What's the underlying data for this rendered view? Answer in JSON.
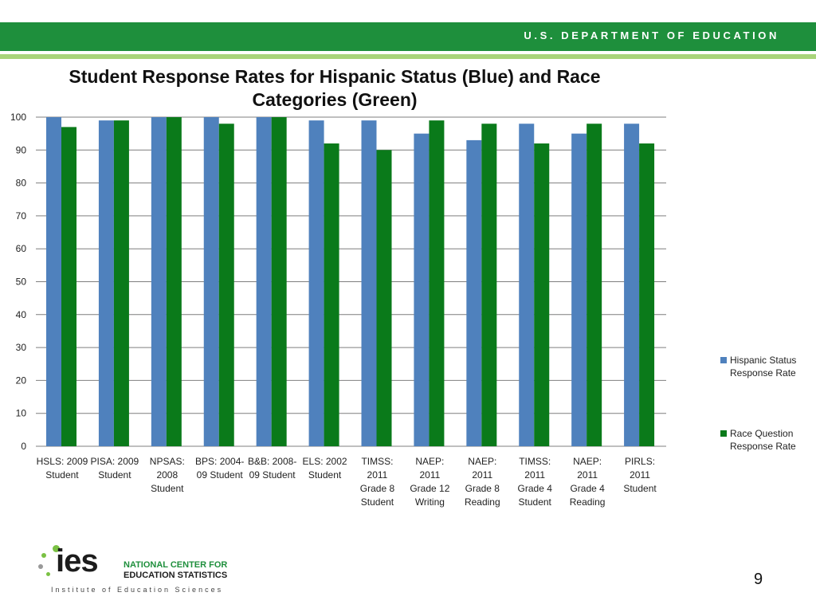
{
  "header": {
    "department": "U.S. DEPARTMENT OF EDUCATION"
  },
  "title": "Student Response Rates for Hispanic Status (Blue) and Race Categories (Green)",
  "chart_data": {
    "type": "bar",
    "title": "Student Response Rates for Hispanic Status (Blue) and Race Categories (Green)",
    "xlabel": "",
    "ylabel": "",
    "ylim": [
      0,
      100
    ],
    "yticks": [
      0,
      10,
      20,
      30,
      40,
      50,
      60,
      70,
      80,
      90,
      100
    ],
    "grid": true,
    "legend_position": "right",
    "categories": [
      [
        "HSLS: 2009",
        "Student"
      ],
      [
        "PISA: 2009",
        "Student"
      ],
      [
        "NPSAS:",
        "2008",
        "Student"
      ],
      [
        "BPS: 2004-",
        "09 Student"
      ],
      [
        "B&B: 2008-",
        "09 Student"
      ],
      [
        "ELS: 2002",
        "Student"
      ],
      [
        "TIMSS:",
        "2011",
        "Grade 8",
        "Student"
      ],
      [
        "NAEP:",
        "2011",
        "Grade 12",
        "Writing"
      ],
      [
        "NAEP:",
        "2011",
        "Grade 8",
        "Reading"
      ],
      [
        "TIMSS:",
        "2011",
        "Grade 4",
        "Student"
      ],
      [
        "NAEP:",
        "2011",
        "Grade 4",
        "Reading"
      ],
      [
        "PIRLS:",
        "2011",
        "Student"
      ]
    ],
    "series": [
      {
        "name": "Hispanic Status Response Rate",
        "color": "#4f81bd",
        "values": [
          100,
          99,
          100,
          100,
          100,
          99,
          99,
          95,
          93,
          98,
          95,
          98
        ]
      },
      {
        "name": "Race Question Response Rate",
        "color": "#0a7a1a",
        "values": [
          97,
          99,
          100,
          98,
          100,
          92,
          90,
          99,
          98,
          92,
          98,
          92
        ]
      }
    ]
  },
  "legend": {
    "item1": [
      "Hispanic Status",
      "Response Rate"
    ],
    "item2": [
      "Race Question",
      "Response Rate"
    ]
  },
  "logo": {
    "ies": "ies",
    "nces_line1": "NATIONAL CENTER FOR",
    "nces_line2": "EDUCATION STATISTICS",
    "institute": "Institute of Education Sciences"
  },
  "page_number": "9",
  "colors": {
    "header_green": "#1e8f3c",
    "header_light": "#a8d47a"
  }
}
